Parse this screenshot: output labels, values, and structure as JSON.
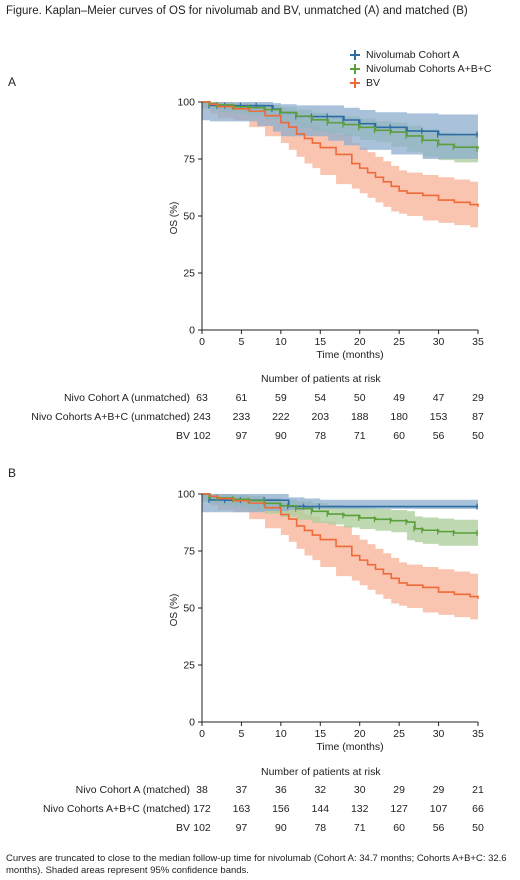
{
  "title": "Figure. Kaplan–Meier curves of OS for nivolumab and BV, unmatched (A) and matched (B)",
  "legend": [
    {
      "name": "Nivolumab Cohort A",
      "color": "#2e6ca4"
    },
    {
      "name": "Nivolumab Cohorts A+B+C",
      "color": "#5c9e3c"
    },
    {
      "name": "BV",
      "color": "#ee6a38"
    }
  ],
  "footnote": "Curves are truncated to close to the median follow-up time for nivolumab (Cohort A: 34.7 months; Cohorts A+B+C: 32.6 months). Shaded areas represent 95% confidence bands.",
  "chart_data": [
    {
      "type": "line",
      "panel_label": "A",
      "xlabel": "Time (months)",
      "ylabel": "OS (%)",
      "xlim": [
        0,
        35
      ],
      "ylim": [
        0,
        100
      ],
      "xticks": [
        0,
        5,
        10,
        15,
        20,
        25,
        30,
        35
      ],
      "yticks": [
        0,
        25,
        50,
        75,
        100
      ],
      "series": [
        {
          "name": "Nivolumab Cohort A",
          "color": "#2e6ca4",
          "x": [
            0,
            1,
            2,
            3,
            5,
            7,
            9,
            10,
            12,
            14,
            16,
            18,
            20,
            22,
            24,
            26,
            28,
            30,
            35
          ],
          "y": [
            100,
            98.5,
            98.4,
            98.4,
            98.4,
            98.4,
            96.9,
            95.3,
            93.7,
            93.6,
            93.6,
            92.1,
            90.5,
            88.9,
            88.9,
            87.3,
            87.2,
            85.7,
            85.7
          ],
          "lower": [
            100,
            92,
            91.5,
            91.5,
            91.5,
            91.5,
            89.5,
            87,
            85,
            85,
            85,
            83,
            81,
            79,
            79,
            77,
            77,
            75,
            75
          ],
          "upper": [
            100,
            100,
            100,
            100,
            100,
            100,
            99.5,
            99,
            98.5,
            98.5,
            98.5,
            97.5,
            96.5,
            95.5,
            95.5,
            95,
            95,
            94.5,
            94.5
          ]
        },
        {
          "name": "Nivolumab Cohorts A+B+C",
          "color": "#5c9e3c",
          "x": [
            0,
            1,
            2,
            4,
            6,
            8,
            10,
            12,
            14,
            16,
            18,
            20,
            22,
            24,
            26,
            28,
            30,
            32,
            35
          ],
          "y": [
            100,
            99.2,
            98.7,
            97.9,
            97.5,
            96.7,
            95.4,
            93.8,
            92.2,
            90.9,
            90.1,
            88.9,
            87.6,
            86.8,
            85.1,
            83.2,
            81.4,
            80.2,
            79.5
          ],
          "lower": [
            100,
            97.8,
            96.8,
            95.6,
            95,
            93.9,
            92.4,
            90.6,
            88.7,
            87.2,
            86.3,
            84.9,
            83.4,
            82.4,
            80.4,
            78.2,
            76,
            74.5,
            73.5
          ],
          "upper": [
            100,
            100,
            99.8,
            99.4,
            99.2,
            98.7,
            97.8,
            96.6,
            95.3,
            94.3,
            93.7,
            92.7,
            91.6,
            91,
            89.6,
            88,
            86.5,
            85.5,
            85
          ]
        },
        {
          "name": "BV",
          "color": "#ee6a38",
          "x": [
            0,
            1,
            2,
            4,
            6,
            8,
            10,
            11,
            12,
            13,
            14,
            15,
            17,
            19,
            20,
            21,
            22,
            23,
            24,
            25,
            26,
            28,
            30,
            32,
            34,
            35
          ],
          "y": [
            100,
            99,
            98,
            97,
            96,
            94,
            91,
            89,
            86,
            84,
            82,
            80,
            77,
            73,
            71,
            69,
            67,
            65,
            63,
            61,
            60,
            59,
            57,
            56,
            55,
            54
          ],
          "lower": [
            100,
            97,
            95,
            93,
            92,
            89,
            85,
            82,
            79,
            76,
            73,
            71,
            68,
            64,
            62,
            60,
            58,
            56,
            54,
            52,
            51,
            50,
            48,
            47,
            46,
            45
          ],
          "upper": [
            100,
            100,
            100,
            99.5,
            99,
            98,
            96,
            95,
            93,
            91,
            90,
            88,
            86,
            82,
            80,
            78,
            76,
            74,
            72,
            70,
            69,
            68,
            67,
            66,
            65,
            64
          ]
        }
      ],
      "risk_table": {
        "title": "Number of patients at risk",
        "time_points": [
          0,
          5,
          10,
          15,
          20,
          25,
          30,
          35
        ],
        "rows": [
          {
            "label": "Nivo Cohort A (unmatched)",
            "values": [
              "63",
              "61",
              "59",
              "54",
              "50",
              "49",
              "47",
              "29"
            ]
          },
          {
            "label": "Nivo Cohorts A+B+C (unmatched)",
            "values": [
              "243",
              "233",
              "222",
              "203",
              "188",
              "180",
              "153",
              "87"
            ]
          },
          {
            "label": "BV",
            "values": [
              "102",
              "97",
              "90",
              "78",
              "71",
              "60",
              "56",
              "50"
            ]
          }
        ]
      }
    },
    {
      "type": "line",
      "panel_label": "B",
      "xlabel": "Time (months)",
      "ylabel": "OS (%)",
      "xlim": [
        0,
        35
      ],
      "ylim": [
        0,
        100
      ],
      "xticks": [
        0,
        5,
        10,
        15,
        20,
        25,
        30,
        35
      ],
      "yticks": [
        0,
        25,
        50,
        75,
        100
      ],
      "series": [
        {
          "name": "Nivolumab Cohort A",
          "color": "#2e6ca4",
          "x": [
            0,
            1,
            3,
            5,
            8,
            11,
            13,
            15,
            35
          ],
          "y": [
            100,
            97.4,
            97.3,
            97.3,
            97.3,
            94.6,
            94.5,
            94.5,
            94.5
          ],
          "lower": [
            100,
            92,
            92,
            92,
            92,
            92.5,
            93,
            93.5,
            93.5
          ],
          "upper": [
            100,
            100,
            100,
            100,
            100,
            98.5,
            98,
            97.5,
            97.5
          ]
        },
        {
          "name": "Nivolumab Cohorts A+B+C",
          "color": "#5c9e3c",
          "x": [
            0,
            1,
            2,
            4,
            6,
            8,
            10,
            12,
            14,
            16,
            18,
            20,
            22,
            24,
            26,
            27,
            28,
            30,
            32,
            35
          ],
          "y": [
            100,
            98.8,
            98.3,
            97.7,
            97.1,
            95.9,
            94.8,
            93.6,
            92.4,
            91.2,
            90.6,
            89.5,
            88.9,
            88.3,
            87.7,
            84.8,
            84.1,
            83.5,
            82.9,
            82.9
          ],
          "lower": [
            100,
            96.5,
            95.7,
            95,
            94.2,
            92.7,
            91.4,
            90,
            88.7,
            87.3,
            86.6,
            85.3,
            84.6,
            83.9,
            83.2,
            79.7,
            78.9,
            78.1,
            77.3,
            77.3
          ],
          "upper": [
            100,
            100,
            99.8,
            99.5,
            99.1,
            98.3,
            97.6,
            96.8,
            96,
            95.2,
            94.7,
            94,
            93.5,
            93,
            92.5,
            90.2,
            89.7,
            89.2,
            88.7,
            88.7
          ]
        },
        {
          "name": "BV",
          "color": "#ee6a38",
          "x": [
            0,
            1,
            2,
            4,
            6,
            8,
            10,
            11,
            12,
            13,
            14,
            15,
            17,
            19,
            20,
            21,
            22,
            23,
            24,
            25,
            26,
            28,
            30,
            32,
            34,
            35
          ],
          "y": [
            100,
            99,
            98,
            97,
            96,
            94,
            91,
            89,
            86,
            84,
            82,
            80,
            77,
            73,
            71,
            69,
            67,
            65,
            63,
            61,
            60,
            59,
            57,
            56,
            55,
            54
          ],
          "lower": [
            100,
            97,
            95,
            93,
            92,
            89,
            85,
            82,
            79,
            76,
            73,
            71,
            68,
            64,
            62,
            60,
            58,
            56,
            54,
            52,
            51,
            50,
            48,
            47,
            46,
            45
          ],
          "upper": [
            100,
            100,
            100,
            99.5,
            99,
            98,
            96,
            95,
            93,
            91,
            90,
            88,
            86,
            82,
            80,
            78,
            76,
            74,
            72,
            70,
            69,
            68,
            67,
            66,
            65,
            64
          ]
        }
      ],
      "risk_table": {
        "title": "Number of patients at risk",
        "time_points": [
          0,
          5,
          10,
          15,
          20,
          25,
          30,
          35
        ],
        "rows": [
          {
            "label": "Nivo Cohort A (matched)",
            "values": [
              "38",
              "37",
              "36",
              "32",
              "30",
              "29",
              "29",
              "21"
            ]
          },
          {
            "label": "Nivo Cohorts A+B+C (matched)",
            "values": [
              "172",
              "163",
              "156",
              "144",
              "132",
              "127",
              "107",
              "66"
            ]
          },
          {
            "label": "BV",
            "values": [
              "102",
              "97",
              "90",
              "78",
              "71",
              "60",
              "56",
              "50"
            ]
          }
        ]
      }
    }
  ]
}
